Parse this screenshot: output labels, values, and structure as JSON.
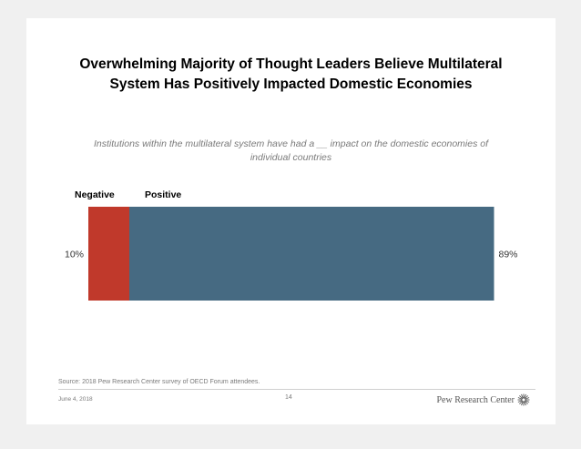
{
  "title_line1": "Overwhelming Majority of Thought Leaders Believe Multilateral",
  "title_line2": "System Has Positively Impacted Domestic Economies",
  "subtitle_line1": "Institutions within the multilateral system have had a __ impact on the domestic economies of",
  "subtitle_line2": "individual countries",
  "source": "Source: 2018 Pew Research Center survey of OECD Forum attendees.",
  "footer": {
    "date": "June 4, 2018",
    "page": "14",
    "brand": "Pew Research Center",
    "brand_icon": "starburst-icon"
  },
  "colors": {
    "negative": "#c0392b",
    "positive": "#466a82"
  },
  "chart_data": {
    "type": "bar",
    "orientation": "horizontal-stacked",
    "title": "Overwhelming Majority of Thought Leaders Believe Multilateral System Has Positively Impacted Domestic Economies",
    "categories": [
      ""
    ],
    "series": [
      {
        "name": "Negative",
        "values": [
          10
        ],
        "label": "10%"
      },
      {
        "name": "Positive",
        "values": [
          89
        ],
        "label": "89%"
      }
    ],
    "xlim": [
      0,
      100
    ],
    "xlabel": "",
    "ylabel": "",
    "legend": "top-left"
  }
}
